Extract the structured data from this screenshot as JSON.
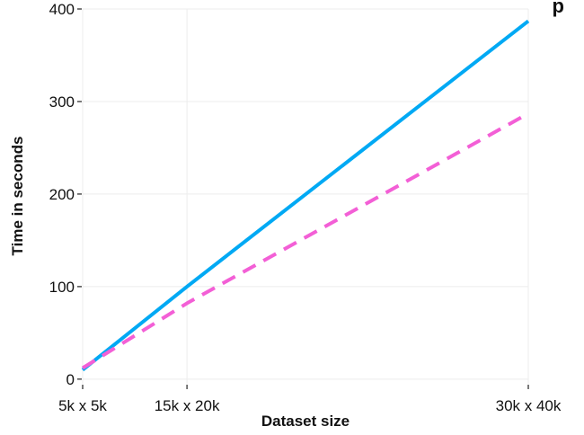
{
  "chart_data": {
    "type": "line",
    "title": "p",
    "xlabel": "Dataset size",
    "ylabel": "Time in seconds",
    "x_numeric": [
      25,
      300,
      1200
    ],
    "x_tick_labels": [
      "5k x 5k",
      "15k x 20k",
      "30k x 40k"
    ],
    "xlim": [
      25,
      1200
    ],
    "ylim": [
      -5,
      400
    ],
    "y_ticks": [
      0,
      100,
      200,
      300,
      400
    ],
    "grid": true,
    "series": [
      {
        "values": [
          10,
          100,
          387
        ],
        "color": "#00a9f4",
        "dash": "solid"
      },
      {
        "values": [
          12,
          82,
          287
        ],
        "color": "#f35fd6",
        "dash": "dashed"
      }
    ]
  }
}
